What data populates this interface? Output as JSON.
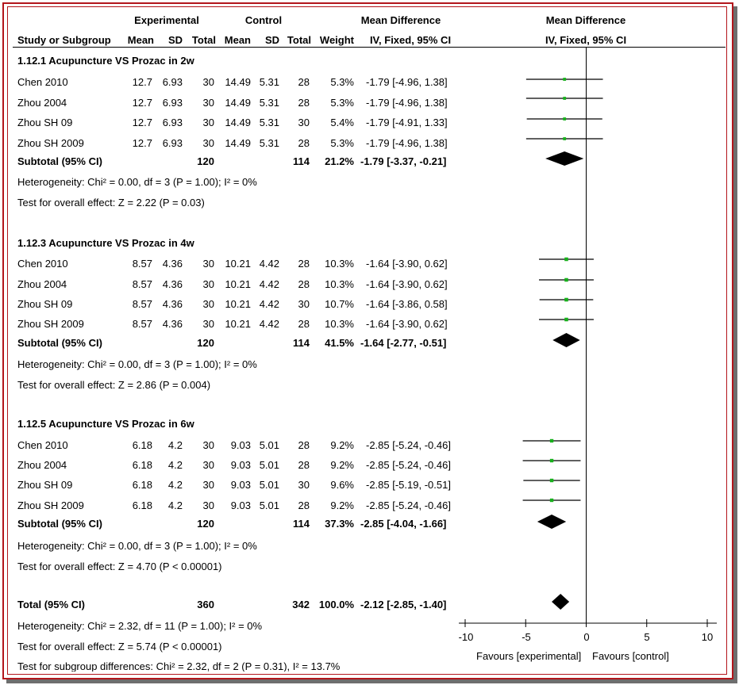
{
  "header": {
    "experimental": "Experimental",
    "control": "Control",
    "mean_difference": "Mean Difference",
    "plot_title": "Mean Difference",
    "study_or_subgroup": "Study or Subgroup",
    "mean": "Mean",
    "sd": "SD",
    "total": "Total",
    "mean_c": "Mean",
    "sd_c": "SD",
    "total_c": "Total",
    "weight": "Weight",
    "method": "IV, Fixed, 95% CI",
    "plot_method": "IV, Fixed, 95% CI"
  },
  "groups": [
    {
      "title": "1.12.1 Acupuncture VS Prozac in 2w",
      "studies": [
        {
          "name": "Chen 2010",
          "mean_e": "12.7",
          "sd_e": "6.93",
          "n_e": "30",
          "mean_c": "14.49",
          "sd_c": "5.31",
          "n_c": "28",
          "weight": "5.3%",
          "ci": "-1.79 [-4.96, 1.38]"
        },
        {
          "name": "Zhou 2004",
          "mean_e": "12.7",
          "sd_e": "6.93",
          "n_e": "30",
          "mean_c": "14.49",
          "sd_c": "5.31",
          "n_c": "28",
          "weight": "5.3%",
          "ci": "-1.79 [-4.96, 1.38]"
        },
        {
          "name": "Zhou SH 09",
          "mean_e": "12.7",
          "sd_e": "6.93",
          "n_e": "30",
          "mean_c": "14.49",
          "sd_c": "5.31",
          "n_c": "30",
          "weight": "5.4%",
          "ci": "-1.79 [-4.91, 1.33]"
        },
        {
          "name": "Zhou SH 2009",
          "mean_e": "12.7",
          "sd_e": "6.93",
          "n_e": "30",
          "mean_c": "14.49",
          "sd_c": "5.31",
          "n_c": "28",
          "weight": "5.3%",
          "ci": "-1.79 [-4.96, 1.38]"
        }
      ],
      "subtotal": {
        "label": "Subtotal (95% CI)",
        "n_e": "120",
        "n_c": "114",
        "weight": "21.2%",
        "ci": "-1.79 [-3.37, -0.21]"
      },
      "heterogeneity": "Heterogeneity: Chi² = 0.00, df = 3 (P = 1.00); I² = 0%",
      "overall": "Test for overall effect: Z = 2.22 (P = 0.03)"
    },
    {
      "title": "1.12.3 Acupuncture VS Prozac in 4w",
      "studies": [
        {
          "name": "Chen 2010",
          "mean_e": "8.57",
          "sd_e": "4.36",
          "n_e": "30",
          "mean_c": "10.21",
          "sd_c": "4.42",
          "n_c": "28",
          "weight": "10.3%",
          "ci": "-1.64 [-3.90, 0.62]"
        },
        {
          "name": "Zhou 2004",
          "mean_e": "8.57",
          "sd_e": "4.36",
          "n_e": "30",
          "mean_c": "10.21",
          "sd_c": "4.42",
          "n_c": "28",
          "weight": "10.3%",
          "ci": "-1.64 [-3.90, 0.62]"
        },
        {
          "name": "Zhou SH 09",
          "mean_e": "8.57",
          "sd_e": "4.36",
          "n_e": "30",
          "mean_c": "10.21",
          "sd_c": "4.42",
          "n_c": "30",
          "weight": "10.7%",
          "ci": "-1.64 [-3.86, 0.58]"
        },
        {
          "name": "Zhou SH 2009",
          "mean_e": "8.57",
          "sd_e": "4.36",
          "n_e": "30",
          "mean_c": "10.21",
          "sd_c": "4.42",
          "n_c": "28",
          "weight": "10.3%",
          "ci": "-1.64 [-3.90, 0.62]"
        }
      ],
      "subtotal": {
        "label": "Subtotal (95% CI)",
        "n_e": "120",
        "n_c": "114",
        "weight": "41.5%",
        "ci": "-1.64 [-2.77, -0.51]"
      },
      "heterogeneity": "Heterogeneity: Chi² = 0.00, df = 3 (P = 1.00); I² = 0%",
      "overall": "Test for overall effect: Z = 2.86 (P = 0.004)"
    },
    {
      "title": "1.12.5 Acupuncture VS Prozac in 6w",
      "studies": [
        {
          "name": "Chen 2010",
          "mean_e": "6.18",
          "sd_e": "4.2",
          "n_e": "30",
          "mean_c": "9.03",
          "sd_c": "5.01",
          "n_c": "28",
          "weight": "9.2%",
          "ci": "-2.85 [-5.24, -0.46]"
        },
        {
          "name": "Zhou 2004",
          "mean_e": "6.18",
          "sd_e": "4.2",
          "n_e": "30",
          "mean_c": "9.03",
          "sd_c": "5.01",
          "n_c": "28",
          "weight": "9.2%",
          "ci": "-2.85 [-5.24, -0.46]"
        },
        {
          "name": "Zhou SH 09",
          "mean_e": "6.18",
          "sd_e": "4.2",
          "n_e": "30",
          "mean_c": "9.03",
          "sd_c": "5.01",
          "n_c": "30",
          "weight": "9.6%",
          "ci": "-2.85 [-5.19, -0.51]"
        },
        {
          "name": "Zhou SH 2009",
          "mean_e": "6.18",
          "sd_e": "4.2",
          "n_e": "30",
          "mean_c": "9.03",
          "sd_c": "5.01",
          "n_c": "28",
          "weight": "9.2%",
          "ci": "-2.85 [-5.24, -0.46]"
        }
      ],
      "subtotal": {
        "label": "Subtotal (95% CI)",
        "n_e": "120",
        "n_c": "114",
        "weight": "37.3%",
        "ci": "-2.85 [-4.04, -1.66]"
      },
      "heterogeneity": "Heterogeneity: Chi² = 0.00, df = 3 (P = 1.00); I² = 0%",
      "overall": "Test for overall effect: Z = 4.70 (P < 0.00001)"
    }
  ],
  "total": {
    "label": "Total (95% CI)",
    "n_e": "360",
    "n_c": "342",
    "weight": "100.0%",
    "ci": "-2.12 [-2.85, -1.40]",
    "heterogeneity": "Heterogeneity: Chi² = 2.32, df = 11 (P = 1.00); I² = 0%",
    "overall": "Test for overall effect: Z = 5.74 (P < 0.00001)",
    "subgroup": "Test for subgroup differences: Chi² = 2.32, df = 2 (P = 0.31), I² = 13.7%"
  },
  "axis": {
    "ticks": [
      "-10",
      "-5",
      "0",
      "5",
      "10"
    ],
    "favours_left": "Favours [experimental]",
    "favours_right": "Favours [control]"
  },
  "colors": {
    "frame": "#b3161c",
    "square": "#17b01c",
    "diamond": "#000000"
  },
  "chart_data": {
    "type": "forest",
    "xlim": [
      -10,
      10
    ],
    "ticks": [
      -10,
      -5,
      0,
      5,
      10
    ],
    "studies": [
      {
        "group": "1.12.1",
        "name": "Chen 2010",
        "md": -1.79,
        "lo": -4.96,
        "hi": 1.38,
        "weight": 5.3
      },
      {
        "group": "1.12.1",
        "name": "Zhou 2004",
        "md": -1.79,
        "lo": -4.96,
        "hi": 1.38,
        "weight": 5.3
      },
      {
        "group": "1.12.1",
        "name": "Zhou SH 09",
        "md": -1.79,
        "lo": -4.91,
        "hi": 1.33,
        "weight": 5.4
      },
      {
        "group": "1.12.1",
        "name": "Zhou SH 2009",
        "md": -1.79,
        "lo": -4.96,
        "hi": 1.38,
        "weight": 5.3
      },
      {
        "group": "1.12.3",
        "name": "Chen 2010",
        "md": -1.64,
        "lo": -3.9,
        "hi": 0.62,
        "weight": 10.3
      },
      {
        "group": "1.12.3",
        "name": "Zhou 2004",
        "md": -1.64,
        "lo": -3.9,
        "hi": 0.62,
        "weight": 10.3
      },
      {
        "group": "1.12.3",
        "name": "Zhou SH 09",
        "md": -1.64,
        "lo": -3.86,
        "hi": 0.58,
        "weight": 10.7
      },
      {
        "group": "1.12.3",
        "name": "Zhou SH 2009",
        "md": -1.64,
        "lo": -3.9,
        "hi": 0.62,
        "weight": 10.3
      },
      {
        "group": "1.12.5",
        "name": "Chen 2010",
        "md": -2.85,
        "lo": -5.24,
        "hi": -0.46,
        "weight": 9.2
      },
      {
        "group": "1.12.5",
        "name": "Zhou 2004",
        "md": -2.85,
        "lo": -5.24,
        "hi": -0.46,
        "weight": 9.2
      },
      {
        "group": "1.12.5",
        "name": "Zhou SH 09",
        "md": -2.85,
        "lo": -5.19,
        "hi": -0.51,
        "weight": 9.6
      },
      {
        "group": "1.12.5",
        "name": "Zhou SH 2009",
        "md": -2.85,
        "lo": -5.24,
        "hi": -0.46,
        "weight": 9.2
      }
    ],
    "subtotals": [
      {
        "group": "1.12.1",
        "md": -1.79,
        "lo": -3.37,
        "hi": -0.21,
        "weight": 21.2
      },
      {
        "group": "1.12.3",
        "md": -1.64,
        "lo": -2.77,
        "hi": -0.51,
        "weight": 41.5
      },
      {
        "group": "1.12.5",
        "md": -2.85,
        "lo": -4.04,
        "hi": -1.66,
        "weight": 37.3
      }
    ],
    "overall": {
      "md": -2.12,
      "lo": -2.85,
      "hi": -1.4,
      "weight": 100.0
    }
  }
}
